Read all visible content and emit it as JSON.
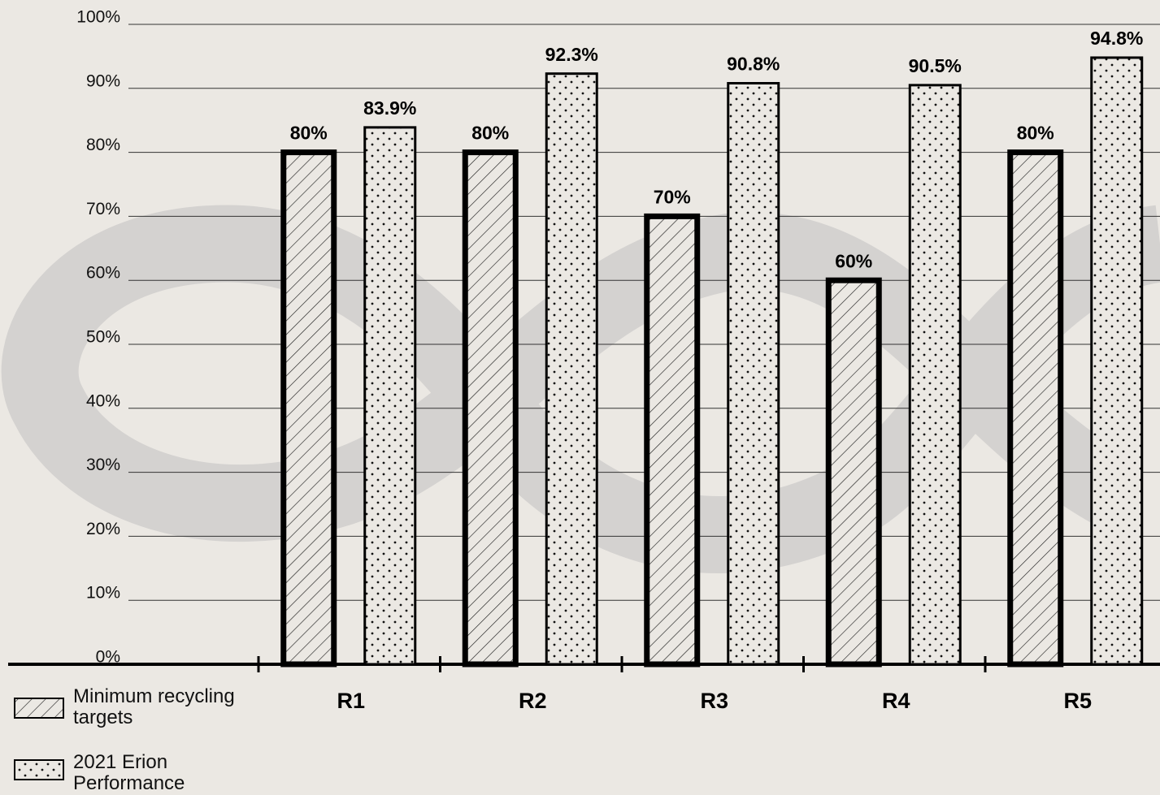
{
  "chart_data": {
    "type": "bar",
    "categories": [
      "R1",
      "R2",
      "R3",
      "R4",
      "R5"
    ],
    "series": [
      {
        "name": "Minimum recycling targets",
        "color": "#000000",
        "pattern": "hatch",
        "values": [
          80,
          80,
          70,
          60,
          80
        ],
        "value_labels": [
          "80%",
          "80%",
          "70%",
          "60%",
          "80%"
        ]
      },
      {
        "name": "2021 Erion Performance",
        "color": "#000000",
        "pattern": "dots",
        "values": [
          83.9,
          92.3,
          90.8,
          90.5,
          94.8
        ],
        "value_labels": [
          "83.9%",
          "92.3%",
          "90.8%",
          "90.5%",
          "94.8%"
        ]
      }
    ],
    "ylim": [
      0,
      100
    ],
    "yticks": [
      {
        "value": 0,
        "label": "0%"
      },
      {
        "value": 10,
        "label": "10%"
      },
      {
        "value": 20,
        "label": "20%"
      },
      {
        "value": 30,
        "label": "30%"
      },
      {
        "value": 40,
        "label": "40%"
      },
      {
        "value": 50,
        "label": "50%"
      },
      {
        "value": 60,
        "label": "60%"
      },
      {
        "value": 70,
        "label": "70%"
      },
      {
        "value": 80,
        "label": "80%"
      },
      {
        "value": 90,
        "label": "90%"
      },
      {
        "value": 100,
        "label": "100%"
      }
    ],
    "grid": true
  }
}
